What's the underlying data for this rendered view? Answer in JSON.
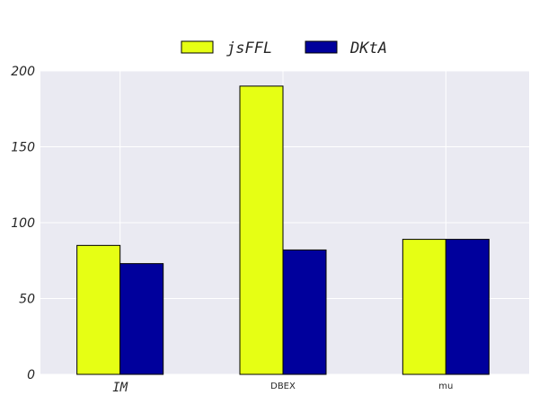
{
  "chart_data": {
    "type": "bar",
    "title": "",
    "xlabel": "",
    "ylabel": "",
    "categories": [
      "IM",
      "DBEX",
      "mu"
    ],
    "series": [
      {
        "name": "jsFFL",
        "values": [
          85,
          190,
          89
        ],
        "color": "#e6ff14"
      },
      {
        "name": "DKtA",
        "values": [
          73,
          82,
          89
        ],
        "color": "#00009c"
      }
    ],
    "ylim": [
      0,
      200
    ],
    "yticks": [
      "0",
      "50",
      "100",
      "150",
      "200"
    ],
    "grid": true,
    "legend_position": "top-center",
    "background_color": "#eaeaf2"
  }
}
